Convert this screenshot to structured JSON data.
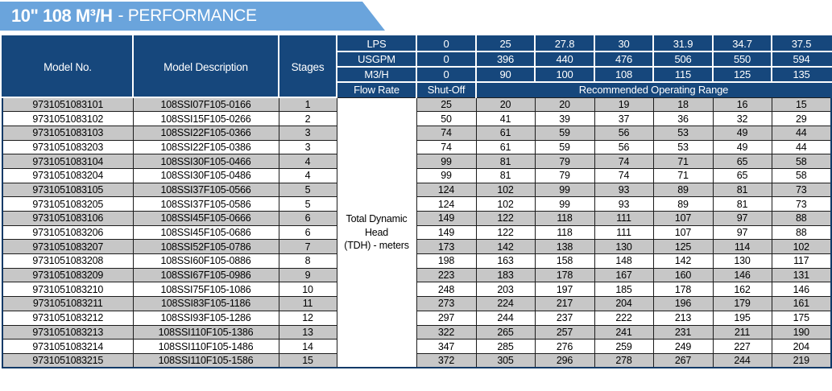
{
  "banner": {
    "title_main": "10\" 108 M³/H",
    "title_sub": "- PERFORMANCE"
  },
  "table": {
    "header": {
      "model_no": "Model No.",
      "model_description": "Model Description",
      "stages": "Stages",
      "unit_rows": [
        {
          "label": "LPS",
          "values": [
            "0",
            "25",
            "27.8",
            "30",
            "31.9",
            "34.7",
            "37.5"
          ]
        },
        {
          "label": "USGPM",
          "values": [
            "0",
            "396",
            "440",
            "476",
            "506",
            "550",
            "594"
          ]
        },
        {
          "label": "M3/H",
          "values": [
            "0",
            "90",
            "100",
            "108",
            "115",
            "125",
            "135"
          ]
        }
      ],
      "flow_rate_label": "Flow Rate",
      "shut_off_label": "Shut-Off",
      "operating_range_label": "Recommended Operating Range"
    },
    "tdh_label_line1": "Total Dynamic Head",
    "tdh_label_line2": "(TDH) - meters",
    "rows": [
      {
        "model_no": "9731051083101",
        "description": "108SSI07F105-0166",
        "stages": "1",
        "values": [
          25,
          20,
          20,
          19,
          18,
          16,
          15
        ]
      },
      {
        "model_no": "9731051083102",
        "description": "108SSI15F105-0266",
        "stages": "2",
        "values": [
          50,
          41,
          39,
          37,
          36,
          32,
          29
        ]
      },
      {
        "model_no": "9731051083103",
        "description": "108SSI22F105-0366",
        "stages": "3",
        "values": [
          74,
          61,
          59,
          56,
          53,
          49,
          44
        ]
      },
      {
        "model_no": "9731051083203",
        "description": "108SSI22F105-0386",
        "stages": "3",
        "values": [
          74,
          61,
          59,
          56,
          53,
          49,
          44
        ]
      },
      {
        "model_no": "9731051083104",
        "description": "108SSI30F105-0466",
        "stages": "4",
        "values": [
          99,
          81,
          79,
          74,
          71,
          65,
          58
        ]
      },
      {
        "model_no": "9731051083204",
        "description": "108SSI30F105-0486",
        "stages": "4",
        "values": [
          99,
          81,
          79,
          74,
          71,
          65,
          58
        ]
      },
      {
        "model_no": "9731051083105",
        "description": "108SSI37F105-0566",
        "stages": "5",
        "values": [
          124,
          102,
          99,
          93,
          89,
          81,
          73
        ]
      },
      {
        "model_no": "9731051083205",
        "description": "108SSI37F105-0586",
        "stages": "5",
        "values": [
          124,
          102,
          99,
          93,
          89,
          81,
          73
        ]
      },
      {
        "model_no": "9731051083106",
        "description": "108SSI45F105-0666",
        "stages": "6",
        "values": [
          149,
          122,
          118,
          111,
          107,
          97,
          88
        ]
      },
      {
        "model_no": "9731051083206",
        "description": "108SSI45F105-0686",
        "stages": "6",
        "values": [
          149,
          122,
          118,
          111,
          107,
          97,
          88
        ]
      },
      {
        "model_no": "9731051083207",
        "description": "108SSI52F105-0786",
        "stages": "7",
        "values": [
          173,
          142,
          138,
          130,
          125,
          114,
          102
        ]
      },
      {
        "model_no": "9731051083208",
        "description": "108SSI60F105-0886",
        "stages": "8",
        "values": [
          198,
          163,
          158,
          148,
          142,
          130,
          117
        ]
      },
      {
        "model_no": "9731051083209",
        "description": "108SSI67F105-0986",
        "stages": "9",
        "values": [
          223,
          183,
          178,
          167,
          160,
          146,
          131
        ]
      },
      {
        "model_no": "9731051083210",
        "description": "108SSI75F105-1086",
        "stages": "10",
        "values": [
          248,
          203,
          197,
          185,
          178,
          162,
          146
        ]
      },
      {
        "model_no": "9731051083211",
        "description": "108SSI83F105-1186",
        "stages": "11",
        "values": [
          273,
          224,
          217,
          204,
          196,
          179,
          161
        ]
      },
      {
        "model_no": "9731051083212",
        "description": "108SSI93F105-1286",
        "stages": "12",
        "values": [
          297,
          244,
          237,
          222,
          213,
          195,
          175
        ]
      },
      {
        "model_no": "9731051083213",
        "description": "108SSI110F105-1386",
        "stages": "13",
        "values": [
          322,
          265,
          257,
          241,
          231,
          211,
          190
        ]
      },
      {
        "model_no": "9731051083214",
        "description": "108SSI110F105-1486",
        "stages": "14",
        "values": [
          347,
          285,
          276,
          259,
          249,
          227,
          204
        ]
      },
      {
        "model_no": "9731051083215",
        "description": "108SSI110F105-1586",
        "stages": "15",
        "values": [
          372,
          305,
          296,
          278,
          267,
          244,
          219
        ]
      }
    ]
  },
  "colors": {
    "banner_blue": "#6aa4dc",
    "header_navy": "#16477c",
    "row_gray": "#c7c7c7",
    "row_white": "#ffffff",
    "grid_dark": "#1c1c1c"
  }
}
